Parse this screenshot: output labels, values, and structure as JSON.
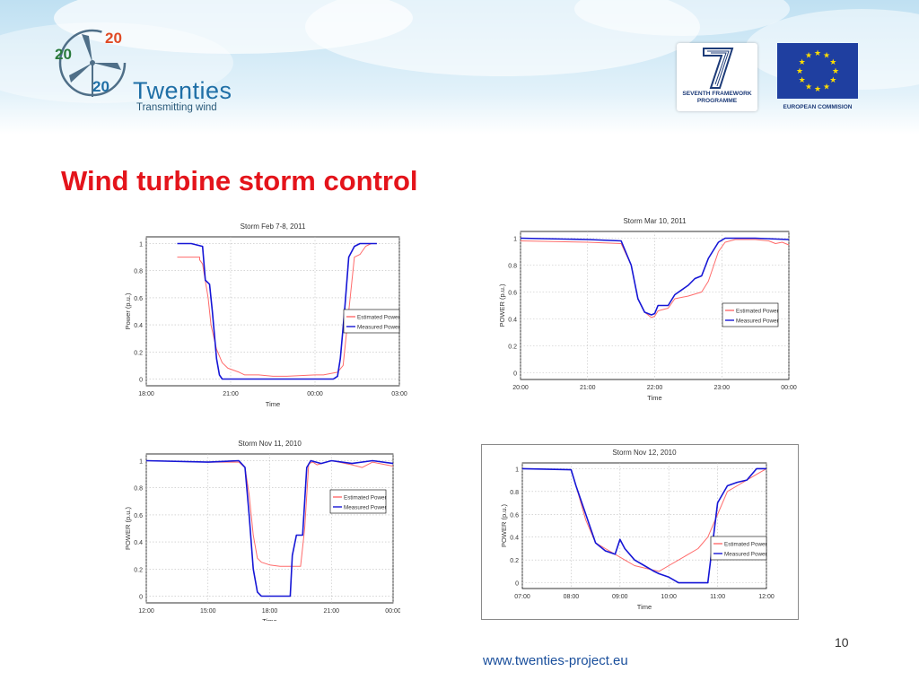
{
  "header": {
    "brand_name": "Twenties",
    "brand_tagline": "Transmitting wind",
    "logo_numbers": [
      "20",
      "20",
      "20"
    ],
    "fp7_line1": "SEVENTH FRAMEWORK",
    "fp7_line2": "PROGRAMME",
    "eu_caption": "EUROPEAN COMMISION",
    "sky_color": "#bfe0f2"
  },
  "slide": {
    "title": "Wind turbine storm control",
    "page_number": "10",
    "footer_url": "www.twenties-project.eu",
    "title_color": "#e4141b"
  },
  "colors": {
    "estimated": "#ff6b6b",
    "measured": "#1616d6",
    "grid": "#bdbdbd"
  },
  "chart_data": [
    {
      "type": "line",
      "title": "Storm Feb 7-8, 2011",
      "xlabel": "Time",
      "ylabel": "Power (p.u.)",
      "xticks": [
        "18:00",
        "21:00",
        "00:00",
        "03:00"
      ],
      "yticks": [
        "0",
        "0.2",
        "0.4",
        "0.6",
        "0.8",
        "1"
      ],
      "xlim": [
        0,
        9
      ],
      "ylim": [
        -0.05,
        1.05
      ],
      "grid": true,
      "legend_position": "right",
      "series": [
        {
          "name": "Estimated Power",
          "color": "#ff6b6b",
          "x": [
            1.1,
            1.9,
            1.9,
            2.0,
            2.2,
            2.3,
            2.5,
            2.7,
            2.9,
            3.3,
            3.5,
            4.0,
            4.5,
            5.0,
            6.0,
            6.3,
            6.8,
            7.0,
            7.2,
            7.4,
            7.6,
            7.8,
            8.0,
            8.2
          ],
          "y": [
            0.9,
            0.9,
            0.88,
            0.85,
            0.6,
            0.4,
            0.22,
            0.12,
            0.08,
            0.05,
            0.03,
            0.03,
            0.02,
            0.02,
            0.03,
            0.03,
            0.05,
            0.1,
            0.5,
            0.9,
            0.92,
            0.98,
            1.0,
            1.0
          ]
        },
        {
          "name": "Measured Power",
          "color": "#1616d6",
          "x": [
            1.1,
            1.6,
            2.0,
            2.1,
            2.25,
            2.35,
            2.5,
            2.6,
            2.7,
            3.0,
            4.0,
            5.0,
            6.0,
            6.3,
            6.65,
            6.8,
            6.9,
            7.05,
            7.2,
            7.4,
            7.6,
            8.2
          ],
          "y": [
            1.0,
            1.0,
            0.98,
            0.73,
            0.7,
            0.5,
            0.15,
            0.03,
            0.0,
            0.0,
            0.0,
            0.0,
            0.0,
            0.0,
            0.0,
            0.02,
            0.15,
            0.5,
            0.9,
            0.98,
            1.0,
            1.0
          ]
        }
      ]
    },
    {
      "type": "line",
      "title": "Storm Mar 10, 2011",
      "xlabel": "Time",
      "ylabel": "POWER (p.u.)",
      "xticks": [
        "20:00",
        "21:00",
        "22:00",
        "23:00",
        "00:00"
      ],
      "yticks": [
        "0",
        "0.2",
        "0.4",
        "0.6",
        "0.8",
        "1"
      ],
      "xlim": [
        0,
        4
      ],
      "ylim": [
        -0.05,
        1.05
      ],
      "grid": true,
      "legend_position": "right",
      "series": [
        {
          "name": "Estimated Power",
          "color": "#ff6b6b",
          "x": [
            0.0,
            1.0,
            1.5,
            1.65,
            1.75,
            1.85,
            1.95,
            2.0,
            2.05,
            2.2,
            2.3,
            2.5,
            2.7,
            2.8,
            2.95,
            3.05,
            3.2,
            3.5,
            3.7,
            3.8,
            3.9,
            4.0
          ],
          "y": [
            0.98,
            0.97,
            0.96,
            0.8,
            0.55,
            0.45,
            0.41,
            0.42,
            0.46,
            0.48,
            0.55,
            0.57,
            0.6,
            0.68,
            0.9,
            0.97,
            0.99,
            0.99,
            0.98,
            0.96,
            0.97,
            0.95
          ]
        },
        {
          "name": "Measured Power",
          "color": "#1616d6",
          "x": [
            0.0,
            1.0,
            1.5,
            1.65,
            1.75,
            1.85,
            1.95,
            2.0,
            2.05,
            2.2,
            2.3,
            2.5,
            2.6,
            2.7,
            2.8,
            2.95,
            3.05,
            3.2,
            3.5,
            4.0
          ],
          "y": [
            1.0,
            0.99,
            0.98,
            0.8,
            0.55,
            0.45,
            0.43,
            0.44,
            0.5,
            0.5,
            0.58,
            0.65,
            0.7,
            0.72,
            0.85,
            0.97,
            1.0,
            1.0,
            1.0,
            0.99
          ]
        }
      ]
    },
    {
      "type": "line",
      "title": "Storm Nov 11, 2010",
      "xlabel": "Time",
      "ylabel": "POWER (p.u.)",
      "xticks": [
        "12:00",
        "15:00",
        "18:00",
        "21:00",
        "00:00"
      ],
      "yticks": [
        "0",
        "0.2",
        "0.4",
        "0.6",
        "0.8",
        "1"
      ],
      "xlim": [
        0,
        12
      ],
      "ylim": [
        -0.05,
        1.05
      ],
      "grid": true,
      "legend_position": "right",
      "series": [
        {
          "name": "Estimated Power",
          "color": "#ff6b6b",
          "x": [
            0.0,
            3.0,
            4.5,
            4.8,
            5.0,
            5.2,
            5.4,
            5.6,
            6.0,
            6.5,
            7.0,
            7.2,
            7.5,
            7.7,
            7.9,
            8.1,
            8.3,
            9.0,
            10.0,
            10.5,
            11.0,
            12.0
          ],
          "y": [
            1.0,
            0.99,
            0.99,
            0.95,
            0.75,
            0.45,
            0.28,
            0.25,
            0.23,
            0.22,
            0.22,
            0.22,
            0.22,
            0.5,
            0.98,
            0.99,
            0.97,
            1.0,
            0.97,
            0.95,
            0.99,
            0.96
          ]
        },
        {
          "name": "Measured Power",
          "color": "#1616d6",
          "x": [
            0.0,
            3.0,
            4.5,
            4.8,
            5.0,
            5.2,
            5.4,
            5.6,
            6.0,
            6.5,
            7.0,
            7.1,
            7.3,
            7.6,
            7.8,
            8.0,
            8.5,
            9.0,
            10.0,
            11.0,
            12.0
          ],
          "y": [
            1.0,
            0.99,
            1.0,
            0.95,
            0.6,
            0.2,
            0.03,
            0.0,
            0.0,
            0.0,
            0.0,
            0.3,
            0.45,
            0.45,
            0.95,
            1.0,
            0.98,
            1.0,
            0.98,
            1.0,
            0.98
          ]
        }
      ]
    },
    {
      "type": "line",
      "title": "Storm Nov 12, 2010",
      "xlabel": "Time",
      "ylabel": "POWER (p.u.)",
      "xticks": [
        "07:00",
        "08:00",
        "09:00",
        "10:00",
        "11:00",
        "12:00"
      ],
      "yticks": [
        "0",
        "0.2",
        "0.4",
        "0.6",
        "0.8",
        "1"
      ],
      "xlim": [
        0,
        5
      ],
      "ylim": [
        -0.05,
        1.05
      ],
      "grid": true,
      "legend_position": "right",
      "series": [
        {
          "name": "Estimated Power",
          "color": "#ff6b6b",
          "x": [
            0.0,
            1.0,
            1.1,
            1.3,
            1.5,
            1.7,
            1.9,
            2.1,
            2.3,
            2.6,
            2.8,
            3.0,
            3.2,
            3.4,
            3.6,
            3.8,
            4.0,
            4.2,
            4.4,
            4.6,
            4.8,
            5.0
          ],
          "y": [
            1.0,
            0.99,
            0.85,
            0.55,
            0.35,
            0.3,
            0.25,
            0.2,
            0.15,
            0.12,
            0.1,
            0.15,
            0.2,
            0.25,
            0.3,
            0.4,
            0.6,
            0.8,
            0.85,
            0.9,
            0.95,
            1.0
          ]
        },
        {
          "name": "Measured Power",
          "color": "#1616d6",
          "x": [
            0.0,
            1.0,
            1.1,
            1.3,
            1.5,
            1.7,
            1.9,
            2.0,
            2.1,
            2.3,
            2.5,
            2.7,
            2.8,
            3.0,
            3.2,
            3.5,
            3.8,
            4.0,
            4.2,
            4.4,
            4.6,
            4.8,
            5.0
          ],
          "y": [
            1.0,
            0.99,
            0.85,
            0.6,
            0.35,
            0.28,
            0.25,
            0.38,
            0.3,
            0.2,
            0.15,
            0.1,
            0.08,
            0.05,
            0.0,
            0.0,
            0.0,
            0.7,
            0.85,
            0.88,
            0.9,
            1.0,
            1.0
          ]
        }
      ]
    }
  ]
}
